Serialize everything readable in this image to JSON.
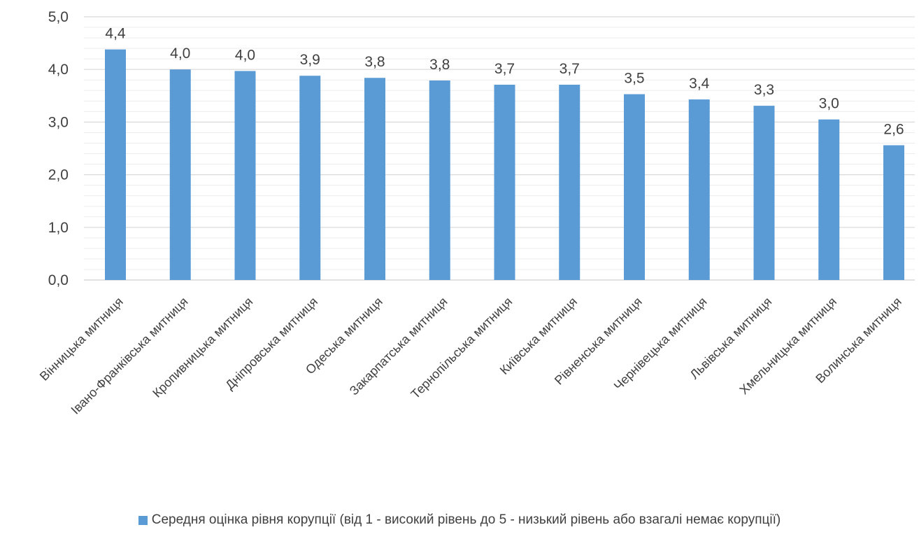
{
  "chart_data": {
    "type": "bar",
    "categories": [
      "Вінницька митниця",
      "Івано-Франківська митниця",
      "Кропивницька митниця",
      "Дніпровська митниця",
      "Одеська митниця",
      "Закарпатська митниця",
      "Тернопільська митниця",
      "Київська митниця",
      "Рівненська митниця",
      "Чернівецька митниця",
      "Львівська митниця",
      "Хмельницька митниця",
      "Волинська митниця"
    ],
    "series": [
      {
        "name": "Середня оцінка рівня корупції (від 1 - високий рівень до 5 - низький рівень або взагалі немає корупції)",
        "values": [
          4.38,
          4.0,
          3.97,
          3.88,
          3.84,
          3.79,
          3.71,
          3.71,
          3.53,
          3.43,
          3.31,
          3.05,
          2.56
        ],
        "labels": [
          "4,4",
          "4,0",
          "4,0",
          "3,9",
          "3,8",
          "3,8",
          "3,7",
          "3,7",
          "3,5",
          "3,4",
          "3,3",
          "3,0",
          "2,6"
        ]
      }
    ],
    "y_ticks": [
      "0,0",
      "1,0",
      "2,0",
      "3,0",
      "4,0",
      "5,0"
    ],
    "ylim": [
      0,
      5
    ],
    "grid": true,
    "legend_position": "bottom",
    "title": "",
    "xlabel": "",
    "ylabel": "",
    "colors": {
      "bar": "#5B9BD5",
      "grid": "#D9D9D9",
      "axis": "#D9D9D9",
      "text": "#404040"
    }
  }
}
